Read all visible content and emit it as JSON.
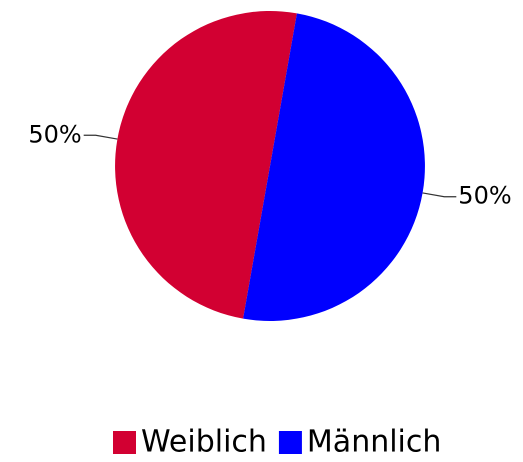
{
  "chart_data": {
    "type": "pie",
    "categories": [
      "Weiblich",
      "Männlich"
    ],
    "values": [
      50,
      50
    ],
    "value_labels": [
      "50%",
      "50%"
    ],
    "colors": [
      "#d20032",
      "#0000ff"
    ]
  }
}
